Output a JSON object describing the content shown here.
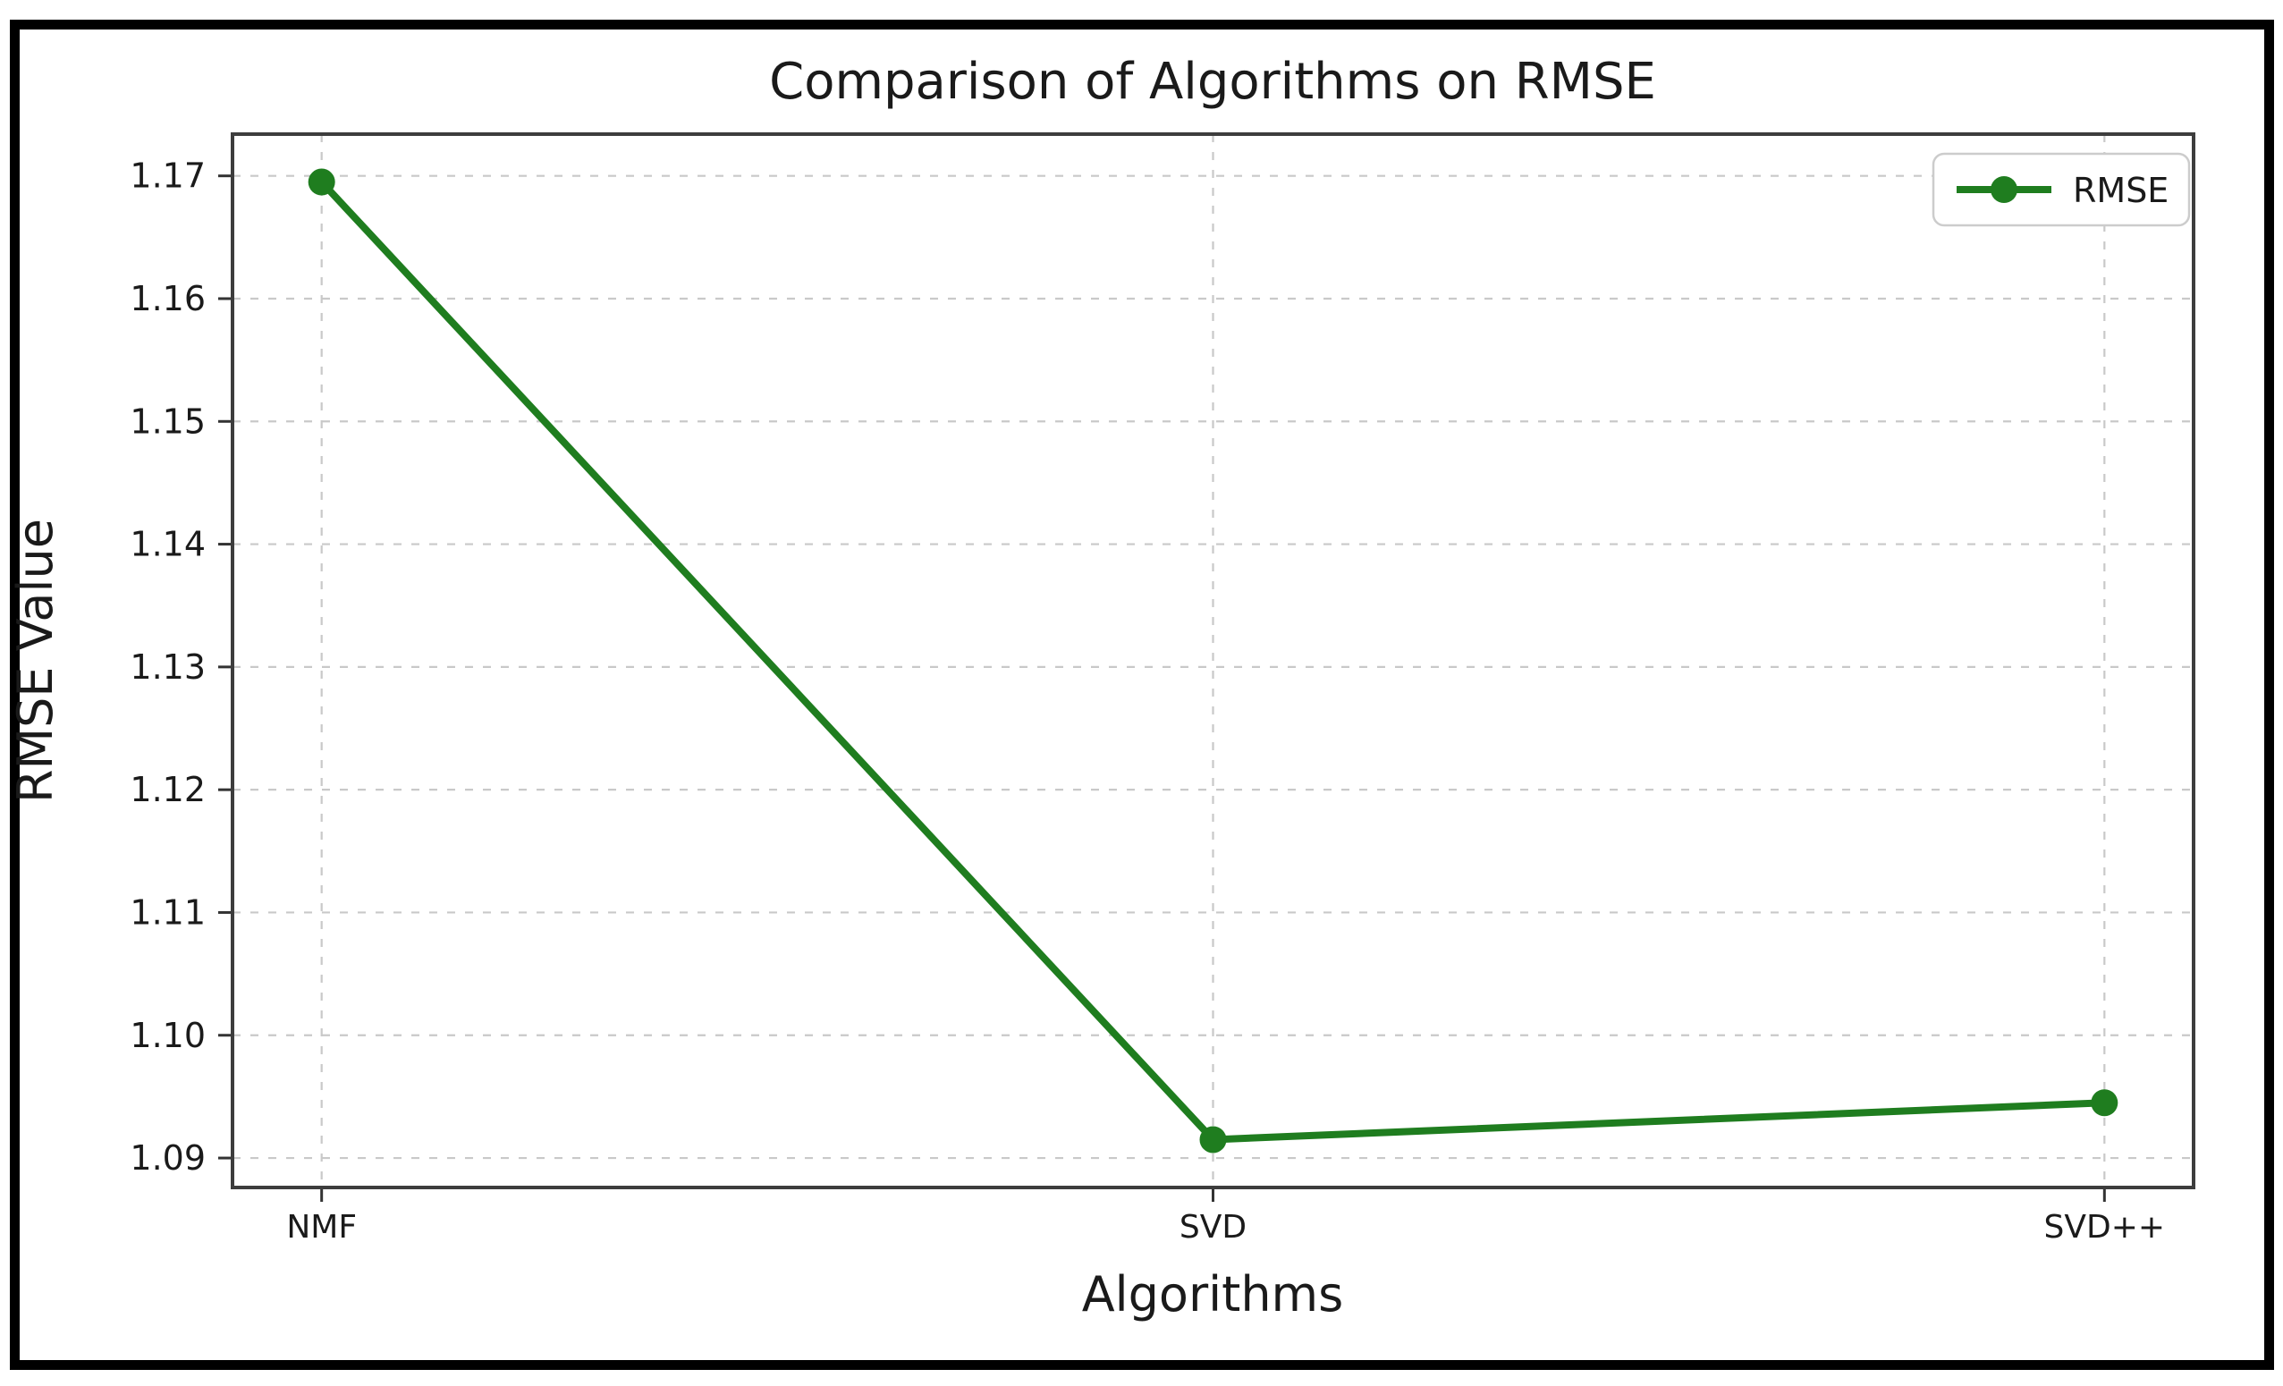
{
  "chart_data": {
    "type": "line",
    "title": "Comparison of Algorithms on RMSE",
    "xlabel": "Algorithms",
    "ylabel": "RMSE Value",
    "categories": [
      "NMF",
      "SVD",
      "SVD++"
    ],
    "series": [
      {
        "name": "RMSE",
        "color": "#1f7d1f",
        "marker": "circle",
        "values": [
          1.1695,
          1.0915,
          1.0945
        ]
      }
    ],
    "yticks": [
      1.09,
      1.1,
      1.11,
      1.12,
      1.13,
      1.14,
      1.15,
      1.16,
      1.17
    ],
    "ytick_labels": [
      "1.09",
      "1.10",
      "1.11",
      "1.12",
      "1.13",
      "1.14",
      "1.15",
      "1.16",
      "1.17"
    ],
    "ylim": [
      1.0876,
      1.1734
    ],
    "xlim": [
      -0.1,
      2.1
    ],
    "grid": true,
    "grid_style": "dashed",
    "legend": {
      "position": "upper right",
      "entries": [
        "RMSE"
      ]
    }
  },
  "colors": {
    "line_green": "#1f7d1f",
    "frame_black": "#000000",
    "spine_gray": "#3d3d3d",
    "grid_gray": "#c9c9c9"
  }
}
